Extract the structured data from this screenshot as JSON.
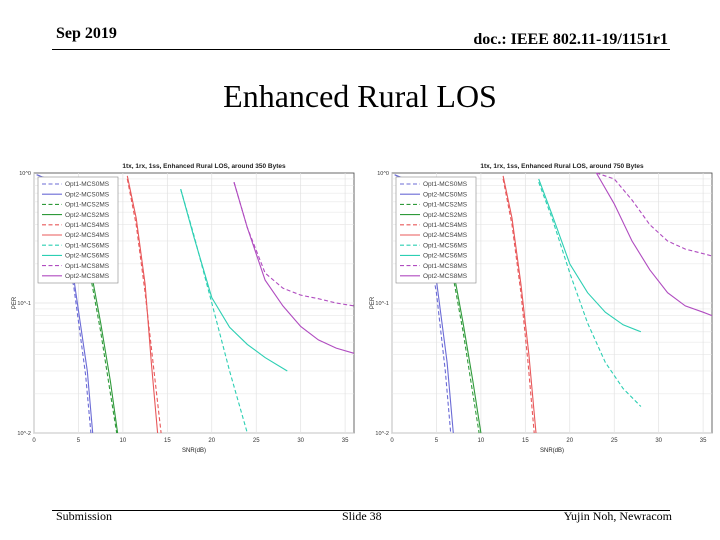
{
  "header": {
    "date": "Sep 2019",
    "doc": "doc.: IEEE 802.11-19/1151r1"
  },
  "slide_title": "Enhanced Rural LOS",
  "footer": {
    "left": "Submission",
    "center": "Slide 38",
    "right": "Yujin Noh, Newracom"
  },
  "colors": {
    "MCS0": "#6b6bd6",
    "MCS2": "#2f9a3a",
    "MCS4": "#e8585a",
    "MCS6": "#2ccfb3",
    "MCS8": "#b04cc0",
    "grid": "#e2e2e2"
  },
  "chart_data": [
    {
      "type": "line",
      "title": "1tx, 1rx, 1ss, Enhanced Rural LOS, around 350 Bytes",
      "xlabel": "SNR(dB)",
      "ylabel": "PER",
      "xlim": [
        0,
        36
      ],
      "ylim": [
        0.01,
        1
      ],
      "yscale": "log",
      "xticks": [
        0,
        5,
        10,
        15,
        20,
        25,
        30,
        35
      ],
      "yticks": [
        {
          "v": 1,
          "label": "10^0"
        },
        {
          "v": 0.1,
          "label": "10^-1"
        },
        {
          "v": 0.01,
          "label": "10^-2"
        }
      ],
      "legend_position": "top-left",
      "series": [
        {
          "name": "Opt1-MCS0MS",
          "mcs": "MCS0",
          "dash": true,
          "x": [
            0.3,
            1.5,
            3,
            4.5,
            5.8,
            6.4
          ],
          "y": [
            0.97,
            0.9,
            0.45,
            0.13,
            0.028,
            0.01
          ]
        },
        {
          "name": "Opt2-MCS0MS",
          "mcs": "MCS0",
          "dash": false,
          "x": [
            0.3,
            1.5,
            3,
            4.5,
            6,
            6.6
          ],
          "y": [
            0.97,
            0.9,
            0.48,
            0.15,
            0.03,
            0.01
          ]
        },
        {
          "name": "Opt1-MCS2MS",
          "mcs": "MCS2",
          "dash": true,
          "x": [
            4.5,
            6,
            7.5,
            8.5,
            9.3
          ],
          "y": [
            0.62,
            0.22,
            0.06,
            0.022,
            0.01
          ]
        },
        {
          "name": "Opt2-MCS2MS",
          "mcs": "MCS2",
          "dash": false,
          "x": [
            4.5,
            6,
            7.5,
            8.6,
            9.4
          ],
          "y": [
            0.65,
            0.25,
            0.07,
            0.025,
            0.01
          ]
        },
        {
          "name": "Opt1-MCS4MS",
          "mcs": "MCS4",
          "dash": true,
          "x": [
            10.5,
            11.5,
            12.5,
            13.5,
            14.3
          ],
          "y": [
            0.9,
            0.4,
            0.12,
            0.03,
            0.01
          ]
        },
        {
          "name": "Opt2-MCS4MS",
          "mcs": "MCS4",
          "dash": false,
          "x": [
            10.5,
            11.5,
            12.5,
            13.2,
            13.9
          ],
          "y": [
            0.95,
            0.45,
            0.14,
            0.035,
            0.01
          ]
        },
        {
          "name": "Opt1-MCS6MS",
          "mcs": "MCS6",
          "dash": true,
          "x": [
            16.5,
            18,
            20,
            22,
            24
          ],
          "y": [
            0.75,
            0.33,
            0.1,
            0.03,
            0.01
          ]
        },
        {
          "name": "Opt2-MCS6MS",
          "mcs": "MCS6",
          "dash": false,
          "x": [
            16.5,
            18,
            20,
            22,
            24,
            26,
            28.5
          ],
          "y": [
            0.75,
            0.32,
            0.11,
            0.065,
            0.048,
            0.038,
            0.03
          ]
        },
        {
          "name": "Opt1-MCS8MS",
          "mcs": "MCS8",
          "dash": true,
          "x": [
            22.5,
            24,
            26,
            28,
            30,
            32,
            34,
            36
          ],
          "y": [
            0.85,
            0.38,
            0.17,
            0.13,
            0.115,
            0.108,
            0.1,
            0.095
          ]
        },
        {
          "name": "Opt2-MCS8MS",
          "mcs": "MCS8",
          "dash": false,
          "x": [
            22.5,
            24,
            26,
            28,
            30,
            32,
            34,
            36
          ],
          "y": [
            0.85,
            0.38,
            0.15,
            0.095,
            0.066,
            0.052,
            0.045,
            0.041
          ]
        }
      ]
    },
    {
      "type": "line",
      "title": "1tx, 1rx, 1ss, Enhanced Rural LOS, around 750 Bytes",
      "xlabel": "SNR(dB)",
      "ylabel": "PER",
      "xlim": [
        0,
        36
      ],
      "ylim": [
        0.01,
        1
      ],
      "yscale": "log",
      "xticks": [
        0,
        5,
        10,
        15,
        20,
        25,
        30,
        35
      ],
      "yticks": [
        {
          "v": 1,
          "label": "10^0"
        },
        {
          "v": 0.1,
          "label": "10^-1"
        },
        {
          "v": 0.01,
          "label": "10^-2"
        }
      ],
      "legend_position": "top-left",
      "series": [
        {
          "name": "Opt1-MCS0MS",
          "mcs": "MCS0",
          "dash": true,
          "x": [
            0.3,
            2,
            3.5,
            5,
            6,
            6.6
          ],
          "y": [
            0.97,
            0.85,
            0.45,
            0.12,
            0.03,
            0.01
          ]
        },
        {
          "name": "Opt2-MCS0MS",
          "mcs": "MCS0",
          "dash": false,
          "x": [
            0.3,
            2,
            3.5,
            5,
            6.2,
            6.9
          ],
          "y": [
            0.97,
            0.87,
            0.5,
            0.15,
            0.035,
            0.01
          ]
        },
        {
          "name": "Opt1-MCS2MS",
          "mcs": "MCS2",
          "dash": true,
          "x": [
            5,
            6.5,
            8,
            9,
            9.8
          ],
          "y": [
            0.62,
            0.22,
            0.06,
            0.022,
            0.01
          ]
        },
        {
          "name": "Opt2-MCS2MS",
          "mcs": "MCS2",
          "dash": false,
          "x": [
            5,
            6.5,
            8,
            9.1,
            10
          ],
          "y": [
            0.65,
            0.25,
            0.07,
            0.025,
            0.01
          ]
        },
        {
          "name": "Opt1-MCS4MS",
          "mcs": "MCS4",
          "dash": true,
          "x": [
            12.5,
            13.5,
            14.5,
            15.3,
            16
          ],
          "y": [
            0.9,
            0.4,
            0.12,
            0.035,
            0.01
          ]
        },
        {
          "name": "Opt2-MCS4MS",
          "mcs": "MCS4",
          "dash": false,
          "x": [
            12.5,
            13.5,
            14.5,
            15.4,
            16.2
          ],
          "y": [
            0.95,
            0.45,
            0.14,
            0.04,
            0.01
          ]
        },
        {
          "name": "Opt1-MCS6MS",
          "mcs": "MCS6",
          "dash": true,
          "x": [
            16.5,
            18,
            20,
            22,
            24,
            26,
            28
          ],
          "y": [
            0.85,
            0.45,
            0.17,
            0.07,
            0.035,
            0.022,
            0.016
          ]
        },
        {
          "name": "Opt2-MCS6MS",
          "mcs": "MCS6",
          "dash": false,
          "x": [
            16.5,
            18,
            20,
            22,
            24,
            26,
            28
          ],
          "y": [
            0.9,
            0.48,
            0.2,
            0.12,
            0.085,
            0.068,
            0.06
          ]
        },
        {
          "name": "Opt1-MCS8MS",
          "mcs": "MCS8",
          "dash": true,
          "x": [
            23,
            25,
            27,
            29,
            31,
            33,
            35,
            36
          ],
          "y": [
            1.0,
            0.9,
            0.62,
            0.4,
            0.3,
            0.26,
            0.24,
            0.23
          ]
        },
        {
          "name": "Opt2-MCS8MS",
          "mcs": "MCS8",
          "dash": false,
          "x": [
            23,
            25,
            27,
            29,
            31,
            33,
            35,
            36
          ],
          "y": [
            1.0,
            0.58,
            0.3,
            0.18,
            0.12,
            0.095,
            0.085,
            0.08
          ]
        }
      ]
    }
  ]
}
